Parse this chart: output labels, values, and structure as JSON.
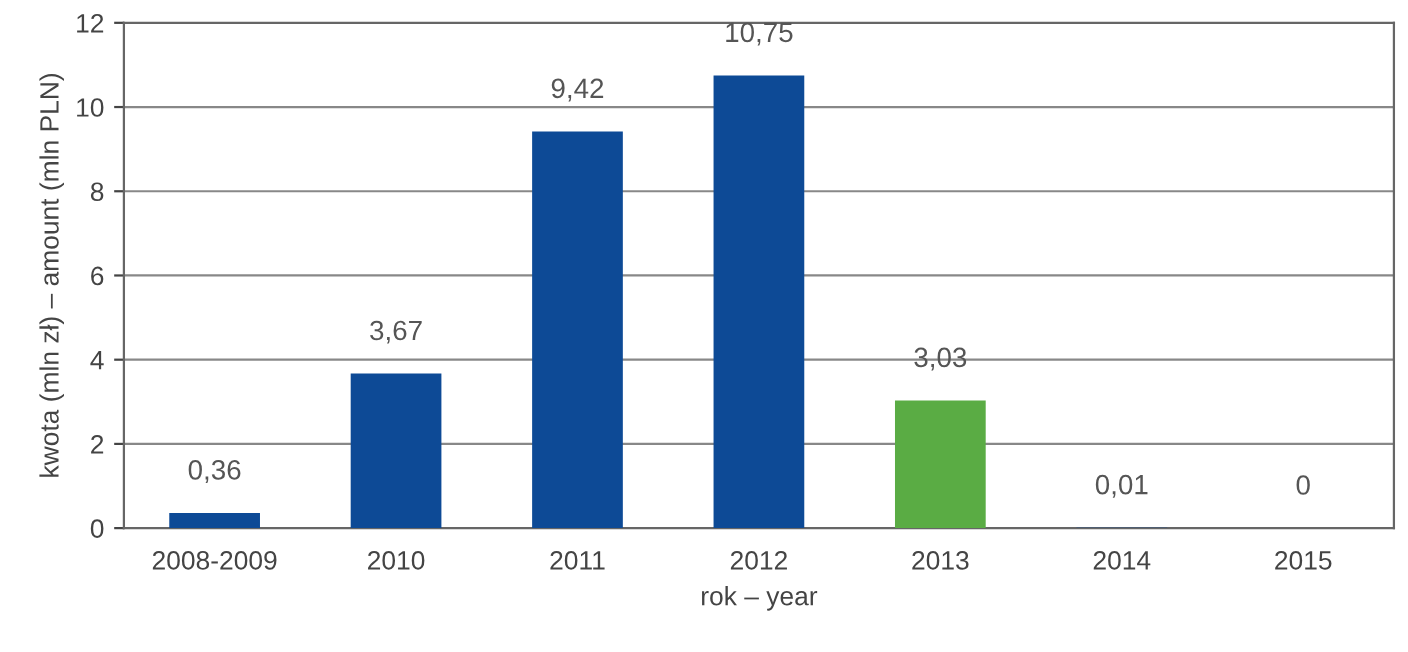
{
  "chart_data": {
    "type": "bar",
    "xlabel": "rok – year",
    "ylabel": "kwota (mln zł) – amount (mln PLN)",
    "categories": [
      "2008-2009",
      "2010",
      "2011",
      "2012",
      "2013",
      "2014",
      "2015"
    ],
    "values": [
      0.36,
      3.67,
      9.42,
      10.75,
      3.03,
      0.01,
      0
    ],
    "colors": [
      "#0d4a96",
      "#0d4a96",
      "#0d4a96",
      "#0d4a96",
      "#5aac44",
      "#0d4a96",
      "#0d4a96"
    ],
    "value_labels": [
      "0,36",
      "3,67",
      "9,42",
      "10,75",
      "3,03",
      "0,01",
      "0"
    ],
    "ylim": [
      0,
      12
    ],
    "yticks": [
      0,
      2,
      4,
      6,
      8,
      10,
      12
    ],
    "grid": "y",
    "legend": false
  }
}
